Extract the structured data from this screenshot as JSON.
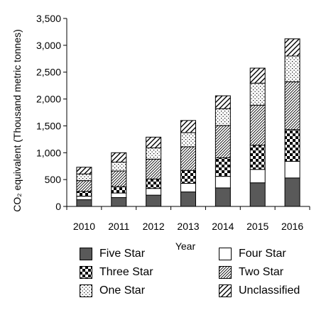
{
  "chart_data": {
    "type": "bar",
    "stacked": true,
    "categories": [
      "2010",
      "2011",
      "2012",
      "2013",
      "2014",
      "2015",
      "2016"
    ],
    "xlabel": "Year",
    "ylabel": "CO₂ equivalent (Thousand metric tonnes)",
    "ylim": [
      0,
      3500
    ],
    "yticks": [
      "0",
      "500",
      "1,000",
      "1,500",
      "2,000",
      "2,500",
      "3,000",
      "3,500"
    ],
    "grid": false,
    "legend_position": "bottom",
    "series": [
      {
        "name": "Five Star",
        "pattern": "solid-dark",
        "color": "#595959",
        "values": [
          125,
          165,
          210,
          270,
          345,
          440,
          530
        ]
      },
      {
        "name": "Four Star",
        "pattern": "white",
        "color": "#ffffff",
        "values": [
          65,
          85,
          125,
          160,
          215,
          250,
          310
        ]
      },
      {
        "name": "Three Star",
        "pattern": "checker",
        "color": "#000000",
        "values": [
          90,
          120,
          175,
          240,
          345,
          450,
          590
        ]
      },
      {
        "name": "Two Star",
        "pattern": "diagonal-dense",
        "color": "#000000",
        "values": [
          200,
          290,
          370,
          440,
          600,
          745,
          890
        ]
      },
      {
        "name": "One Star",
        "pattern": "dots",
        "color": "#000000",
        "values": [
          125,
          165,
          210,
          265,
          315,
          410,
          480
        ]
      },
      {
        "name": "Unclassified",
        "pattern": "diagonal-wide",
        "color": "#000000",
        "values": [
          125,
          175,
          200,
          225,
          240,
          280,
          320
        ]
      }
    ]
  }
}
